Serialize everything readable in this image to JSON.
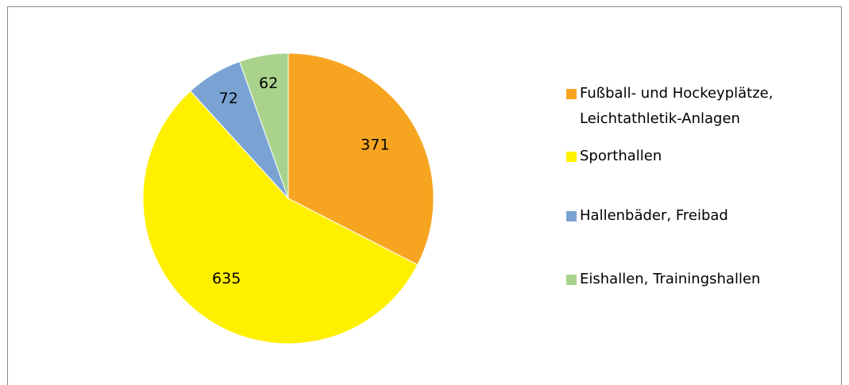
{
  "chart_data": {
    "type": "pie",
    "categories": [
      "Fußball- und Hockeyplätze, Leichtathletik-Anlagen",
      "Sporthallen",
      "Hallenbäder, Freibad",
      "Eishallen, Trainingshallen"
    ],
    "values": [
      371,
      635,
      72,
      62
    ],
    "colors": [
      "#F7A520",
      "#FFF000",
      "#7AA3D4",
      "#A9D38C"
    ],
    "legend": "right"
  }
}
